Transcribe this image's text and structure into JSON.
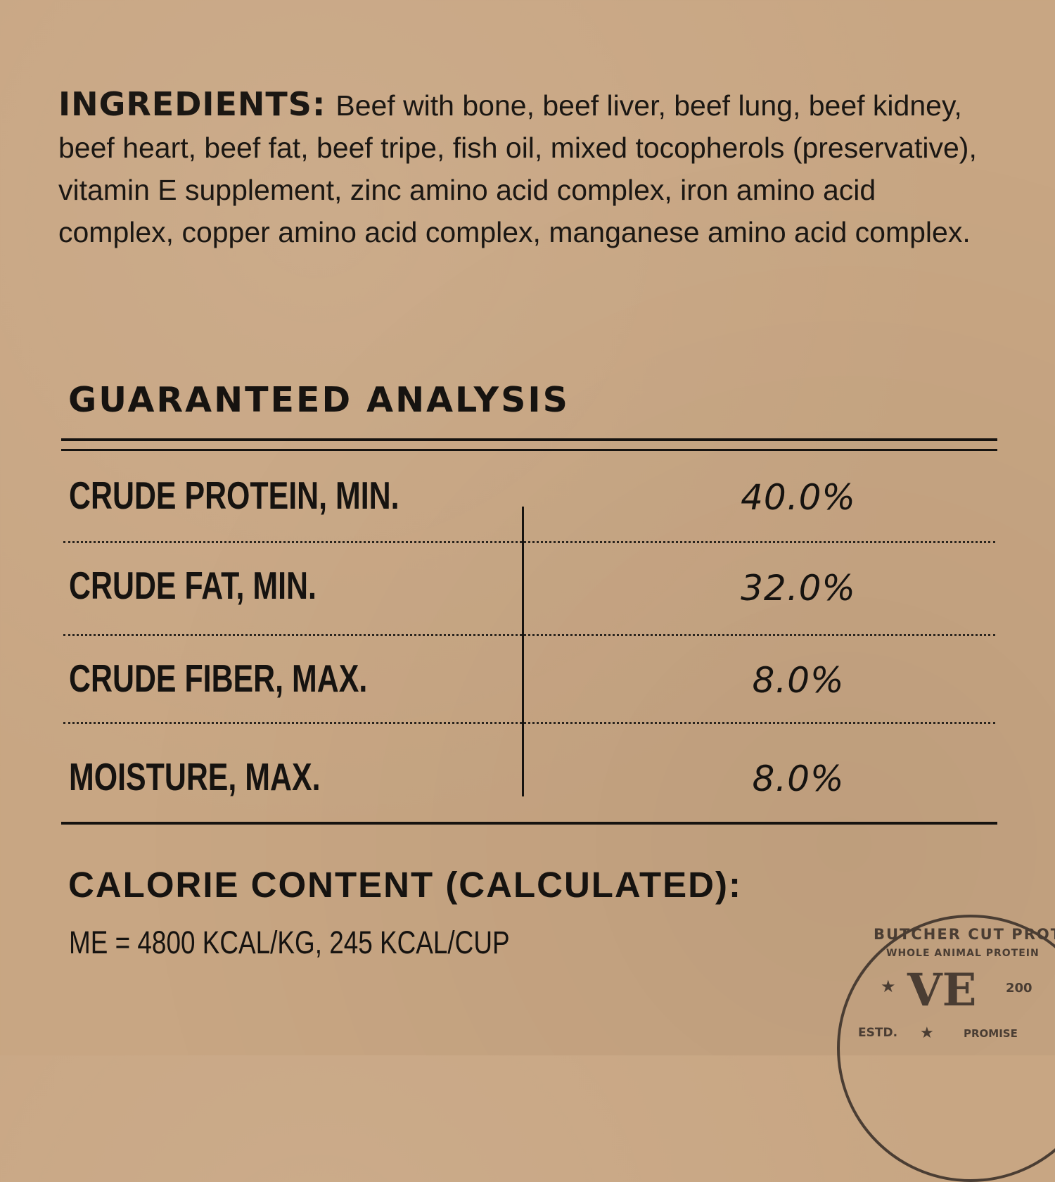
{
  "ingredients": {
    "title": "INGREDIENTS:",
    "text": "Beef with bone, beef liver, beef lung, beef kidney, beef heart, beef fat, beef tripe, fish oil, mixed tocopherols (preservative), vitamin E supplement, zinc amino acid complex, iron amino acid complex, copper amino acid complex, manganese amino acid complex."
  },
  "analysis": {
    "title": "GUARANTEED ANALYSIS",
    "rows": [
      {
        "label": "CRUDE PROTEIN, MIN.",
        "value": "40.0%"
      },
      {
        "label": "CRUDE FAT, MIN.",
        "value": "32.0%"
      },
      {
        "label": "CRUDE FIBER, MAX.",
        "value": "8.0%"
      },
      {
        "label": "MOISTURE, MAX.",
        "value": "8.0%"
      }
    ]
  },
  "calorie": {
    "title": "CALORIE CONTENT (CALCULATED):",
    "value": "ME = 4800 KCAL/KG, 245 KCAL/CUP"
  },
  "stamp": {
    "outer_text": "BUTCHER CUT PROTEIN",
    "inner_text": "WHOLE ANIMAL PROTEIN",
    "logo": "VE",
    "estd": "ESTD.",
    "year_partial": "200",
    "bottom_partial": "PROMISE",
    "color": "#4a3d33"
  }
}
